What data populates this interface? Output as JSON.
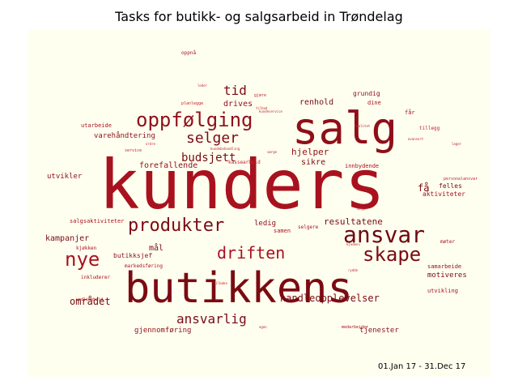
{
  "title": "Tasks for butikk- og salgsarbeid in Trøndelag",
  "date_range": "01.Jan 17 - 31.Dec 17",
  "colors": {
    "background": "#fffff0",
    "dark_red": "#7a0b12",
    "red": "#a8121e",
    "mid_red": "#c0242d"
  },
  "words": [
    {
      "text": "kunders",
      "color": "#a8121e"
    },
    {
      "text": "butikkens",
      "color": "#7a0b12"
    },
    {
      "text": "salg",
      "color": "#8f0f18"
    },
    {
      "text": "ansvar",
      "color": "#6e0a10"
    },
    {
      "text": "oppfølging",
      "color": "#8f0f18"
    },
    {
      "text": "produkter",
      "color": "#7a0b12"
    },
    {
      "text": "skape",
      "color": "#7a0b12"
    },
    {
      "text": "driften",
      "color": "#a8121e"
    },
    {
      "text": "nye",
      "color": "#a8121e"
    },
    {
      "text": "selger",
      "color": "#7a0b12"
    },
    {
      "text": "tid",
      "color": "#7a0b12"
    },
    {
      "text": "budsjett",
      "color": "#7a0b12"
    },
    {
      "text": "ansvarlig",
      "color": "#7a0b12"
    },
    {
      "text": "handleopplevelser",
      "color": "#7a0b12"
    },
    {
      "text": "området",
      "color": "#7a0b12"
    },
    {
      "text": "resultatene",
      "color": "#7a0b12"
    },
    {
      "text": "hjelper",
      "color": "#8f0f18"
    },
    {
      "text": "kampanjer",
      "color": "#7a0b12"
    },
    {
      "text": "motiveres",
      "color": "#7a0b12"
    },
    {
      "text": "renhold",
      "color": "#7a0b12"
    },
    {
      "text": "forefallende",
      "color": "#8f0f18"
    },
    {
      "text": "varehåndtering",
      "color": "#8f0f18"
    },
    {
      "text": "drives",
      "color": "#8f0f18"
    },
    {
      "text": "sikre",
      "color": "#7a0b12"
    },
    {
      "text": "ledig",
      "color": "#8f0f18"
    },
    {
      "text": "mål",
      "color": "#7a0b12"
    },
    {
      "text": "utvikler",
      "color": "#8f0f18"
    },
    {
      "text": "butikksjef",
      "color": "#8f0f18"
    },
    {
      "text": "få",
      "color": "#7a0b12"
    },
    {
      "text": "tjenester",
      "color": "#8f0f18"
    },
    {
      "text": "gjennomføring",
      "color": "#8f0f18"
    },
    {
      "text": "samarbeide",
      "color": "#8f0f18"
    },
    {
      "text": "utvikling",
      "color": "#a8121e"
    },
    {
      "text": "grundig",
      "color": "#8f0f18"
    },
    {
      "text": "dine",
      "color": "#a8121e"
    },
    {
      "text": "felles",
      "color": "#7a0b12"
    },
    {
      "text": "aktiviteter",
      "color": "#a8121e"
    },
    {
      "text": "møter",
      "color": "#a8121e"
    },
    {
      "text": "innbydende",
      "color": "#a8121e"
    },
    {
      "text": "utarbeide",
      "color": "#a8121e"
    },
    {
      "text": "salgsaktiviteter",
      "color": "#a8121e"
    },
    {
      "text": "kjøkken",
      "color": "#a8121e"
    },
    {
      "text": "markedsføring",
      "color": "#a8121e"
    },
    {
      "text": "inkluderer",
      "color": "#a8121e"
    },
    {
      "text": "vedlikehold",
      "color": "#a8121e"
    },
    {
      "text": "samen",
      "color": "#a8121e"
    },
    {
      "text": "selgere",
      "color": "#a8121e"
    },
    {
      "text": "medarbeider",
      "color": "#a8121e"
    },
    {
      "text": "oppnå",
      "color": "#a8121e"
    },
    {
      "text": "får",
      "color": "#a8121e"
    },
    {
      "text": "tillegg",
      "color": "#c0242d"
    },
    {
      "text": "kassearbeid",
      "color": "#c0242d"
    },
    {
      "text": "planlegge",
      "color": "#c0242d"
    },
    {
      "text": "personalansvar",
      "color": "#c0242d"
    },
    {
      "text": "leder",
      "color": "#c0242d"
    },
    {
      "text": "tilbud",
      "color": "#c0242d"
    },
    {
      "text": "gjøre",
      "color": "#c0242d"
    },
    {
      "text": "lager",
      "color": "#c0242d"
    },
    {
      "text": "avansert",
      "color": "#c0242d"
    },
    {
      "text": "kundebehandling",
      "color": "#c0242d"
    },
    {
      "text": "service",
      "color": "#c0242d"
    },
    {
      "text": "kundeservice",
      "color": "#c0242d"
    },
    {
      "text": "rydde",
      "color": "#c0242d"
    },
    {
      "text": "tilbake",
      "color": "#c0242d"
    },
    {
      "text": "ordre",
      "color": "#c0242d"
    },
    {
      "text": "sørge",
      "color": "#c0242d"
    },
    {
      "text": "egen",
      "color": "#c0242d"
    },
    {
      "text": "kvalitet",
      "color": "#c0242d"
    },
    {
      "text": "følge",
      "color": "#c0242d"
    },
    {
      "text": "kjedens",
      "color": "#c0242d"
    }
  ]
}
